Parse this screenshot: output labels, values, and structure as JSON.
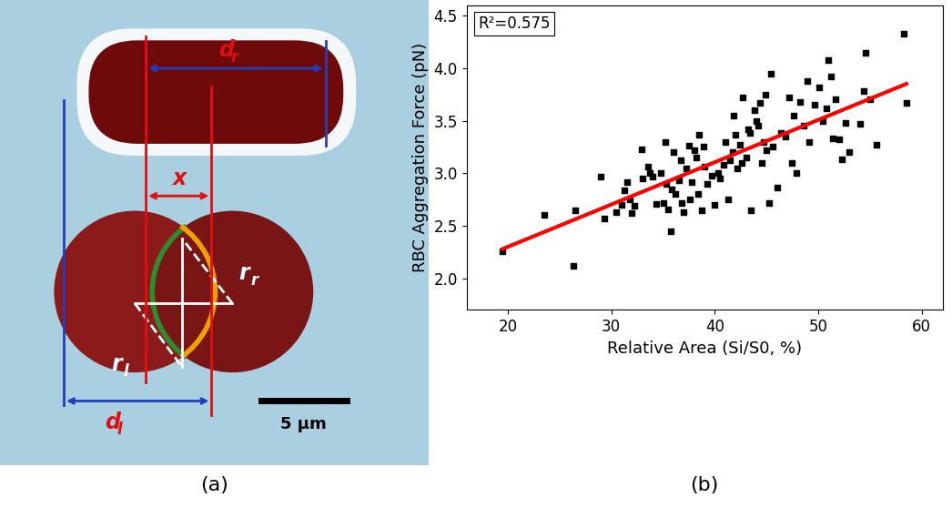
{
  "panel_labels": [
    "(a)",
    "(b)"
  ],
  "diagram": {
    "labels": {
      "d_r": {
        "main": "d",
        "sub": "r"
      },
      "x": {
        "main": "x",
        "sub": ""
      },
      "r_r": {
        "main": "r",
        "sub": "r"
      },
      "r_l": {
        "main": "r",
        "sub": "l"
      },
      "d_l": {
        "main": "d",
        "sub": "l"
      }
    },
    "scale_bar": "5 µm"
  },
  "chart_data": {
    "type": "scatter",
    "xlabel": "Relative Area (Si/S0, %)",
    "ylabel": "RBC Aggregation Force (pN)",
    "annotations": [
      "R²=0.575"
    ],
    "xlim": [
      16,
      62
    ],
    "xticks": [
      20,
      30,
      40,
      50,
      60
    ],
    "ylim": [
      1.7,
      4.6
    ],
    "yticks": [
      2.0,
      2.5,
      3.0,
      3.5,
      4.0,
      4.5
    ],
    "series": [
      {
        "type": "scatter",
        "color": "#000000",
        "marker": "s",
        "x": [
          19.5,
          23.5,
          26.3,
          26.5,
          29.0,
          29.3,
          30.5,
          31.0,
          31.3,
          31.5,
          31.8,
          32.0,
          32.2,
          32.9,
          33.0,
          33.5,
          33.7,
          34.0,
          34.3,
          34.8,
          35.0,
          35.2,
          35.3,
          35.5,
          35.7,
          35.8,
          36.0,
          36.2,
          36.5,
          36.7,
          36.8,
          37.0,
          37.2,
          37.5,
          37.6,
          37.8,
          38.0,
          38.2,
          38.4,
          38.5,
          38.7,
          38.9,
          39.0,
          39.3,
          39.7,
          40.0,
          40.3,
          40.5,
          40.8,
          41.0,
          41.3,
          41.5,
          41.7,
          41.8,
          42.0,
          42.2,
          42.4,
          42.6,
          42.7,
          43.0,
          43.2,
          43.4,
          43.5,
          43.8,
          44.0,
          44.2,
          44.4,
          44.5,
          44.7,
          44.9,
          45.0,
          45.2,
          45.4,
          45.6,
          46.0,
          46.4,
          46.8,
          47.2,
          47.4,
          47.6,
          47.9,
          48.2,
          48.6,
          48.9,
          49.1,
          49.6,
          50.1,
          50.4,
          50.8,
          51.0,
          51.2,
          51.4,
          51.7,
          52.0,
          52.3,
          52.6,
          53.0,
          54.0,
          54.4,
          54.6,
          55.0,
          55.6,
          58.3,
          58.5
        ],
        "values": [
          2.26,
          2.6,
          2.12,
          2.65,
          2.97,
          2.57,
          2.63,
          2.7,
          2.84,
          2.92,
          2.75,
          2.62,
          2.69,
          3.23,
          2.95,
          3.06,
          3.0,
          2.97,
          2.71,
          3.0,
          2.72,
          3.3,
          2.9,
          2.66,
          2.45,
          2.85,
          3.2,
          2.8,
          2.93,
          3.12,
          2.72,
          2.63,
          3.05,
          3.26,
          2.75,
          2.92,
          3.22,
          3.15,
          2.8,
          3.37,
          2.65,
          3.25,
          3.06,
          2.9,
          2.98,
          2.7,
          3.0,
          2.95,
          3.08,
          3.3,
          2.75,
          3.12,
          3.2,
          3.55,
          3.37,
          3.05,
          3.27,
          3.1,
          3.72,
          3.15,
          3.42,
          3.38,
          2.65,
          3.6,
          3.5,
          3.45,
          3.67,
          3.1,
          3.3,
          3.75,
          3.22,
          2.72,
          3.95,
          3.25,
          2.86,
          3.38,
          3.35,
          3.72,
          3.1,
          3.55,
          3.0,
          3.68,
          3.45,
          3.88,
          3.3,
          3.65,
          3.82,
          3.5,
          3.62,
          4.08,
          3.92,
          3.33,
          3.7,
          3.32,
          3.13,
          3.48,
          3.2,
          3.47,
          3.78,
          4.15,
          3.7,
          3.27,
          4.33,
          3.67
        ]
      },
      {
        "type": "line",
        "color": "#ff0000",
        "line_style": "solid",
        "x": [
          19.5,
          58.5
        ],
        "values": [
          2.28,
          3.85
        ]
      }
    ]
  }
}
